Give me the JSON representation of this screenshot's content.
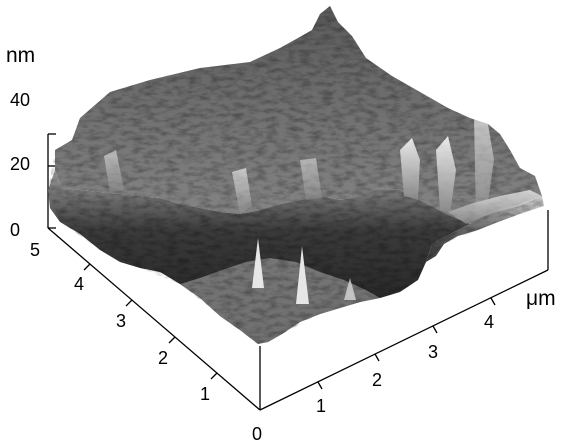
{
  "image": {
    "subject": "afm-3d-surface-topography",
    "palette": {
      "background": "#ffffff",
      "axis": "#000000",
      "surface_dark": "#1c1c1c",
      "surface_mid": "#7a7a7a",
      "surface_light": "#f2f2f2"
    }
  },
  "axes": {
    "z_unit": "nm",
    "z_ticks": [
      "0",
      "20",
      "40"
    ],
    "y_ticks": [
      "0",
      "1",
      "2",
      "3",
      "4",
      "5"
    ],
    "x_ticks": [
      "1",
      "2",
      "3",
      "4"
    ],
    "x_unit": "μm"
  }
}
